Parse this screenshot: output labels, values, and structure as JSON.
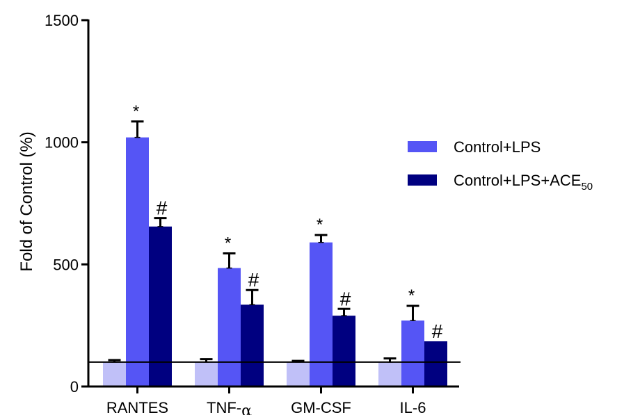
{
  "chart_data": {
    "type": "bar",
    "ylabel": "Fold of Control (%)",
    "ylim": [
      0,
      1500
    ],
    "yticks": [
      "0",
      "500",
      "1000",
      "1500"
    ],
    "categories": [
      "RANTES",
      "TNF-α",
      "GM-CSF",
      "IL-6"
    ],
    "category_labels": [
      {
        "main": "RANTES",
        "greek": ""
      },
      {
        "main": "TNF-",
        "greek": "α"
      },
      {
        "main": "GM-CSF",
        "greek": ""
      },
      {
        "main": "IL-6",
        "greek": ""
      }
    ],
    "reference_line": 100,
    "series": [
      {
        "name": "",
        "color": "#c0c0f8",
        "values": [
          100,
          100,
          100,
          100
        ],
        "errors": [
          8,
          12,
          5,
          15
        ],
        "marks": [
          "",
          "",
          "",
          ""
        ]
      },
      {
        "name": "Control+LPS",
        "color": "#5555f5",
        "values": [
          1020,
          485,
          590,
          270
        ],
        "errors": [
          65,
          60,
          30,
          60
        ],
        "marks": [
          "*",
          "*",
          "*",
          "*"
        ]
      },
      {
        "name": "Control+LPS+ACE50",
        "color": "#000080",
        "values": [
          655,
          335,
          290,
          185
        ],
        "errors": [
          35,
          60,
          28,
          0
        ],
        "marks": [
          "#",
          "#",
          "#",
          "#"
        ]
      }
    ],
    "legend": {
      "position": "right",
      "entries": [
        {
          "label": "Control+LPS",
          "sub": "",
          "color": "#5555f5"
        },
        {
          "label": "Control+LPS+ACE",
          "sub": "50",
          "color": "#000080"
        }
      ]
    },
    "grid": false
  }
}
